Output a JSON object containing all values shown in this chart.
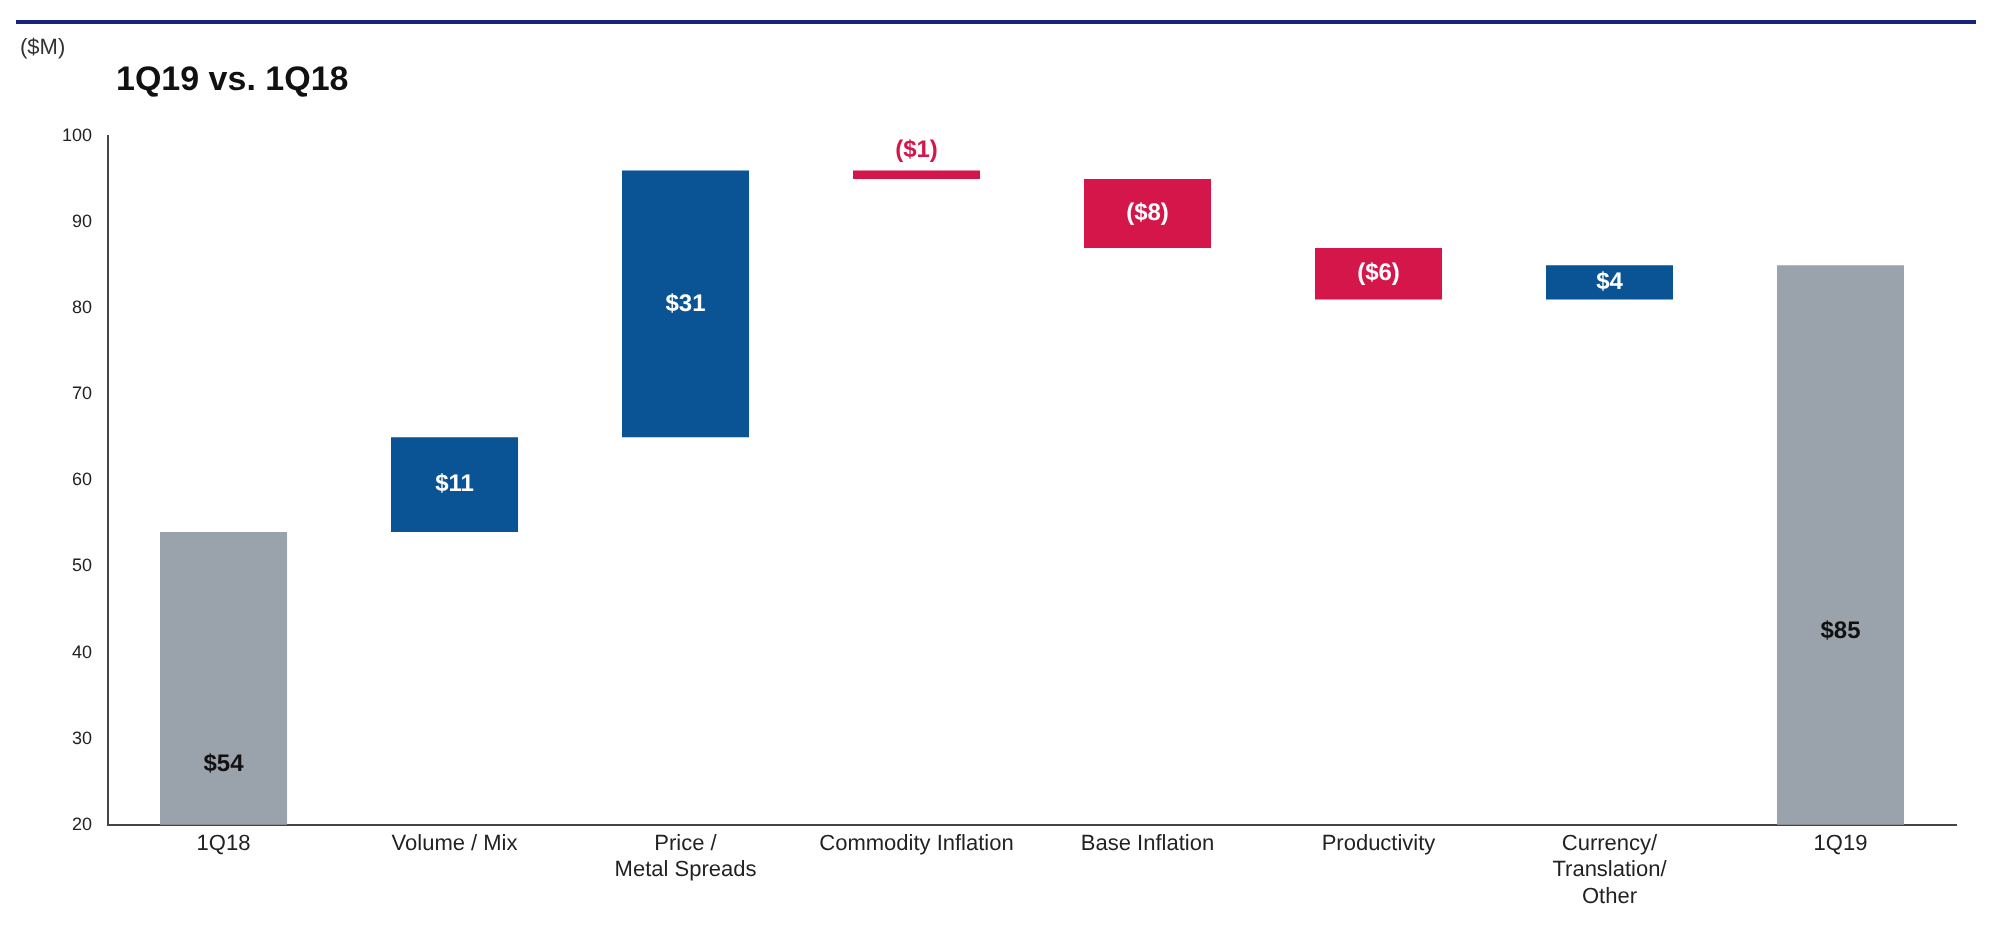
{
  "chart_data": {
    "type": "bar",
    "title": "1Q19 vs. 1Q18",
    "ylabel": "($M)",
    "categories": [
      "1Q18",
      "Volume / Mix",
      "Price /\nMetal Spreads",
      "Commodity Inflation",
      "Base Inflation",
      "Productivity",
      "Currency/\nTranslation/\nOther",
      "1Q19"
    ],
    "values": [
      54,
      11,
      31,
      -1,
      -8,
      -6,
      4,
      85
    ],
    "base": [
      null,
      54,
      65,
      96,
      95,
      87,
      81,
      null
    ],
    "colors": [
      "#9aa3ab",
      "#0a5394",
      "#0a5394",
      "#d4164a",
      "#d4164a",
      "#d4164a",
      "#0a5394",
      "#9aa3ab"
    ],
    "value_labels": [
      "$54",
      "$11",
      "$31",
      "($1)",
      "($8)",
      "($6)",
      "$4",
      "$85"
    ],
    "ylim": [
      20,
      100
    ],
    "yticks": [
      20,
      30,
      40,
      50,
      60,
      70,
      80,
      90,
      100
    ],
    "grid": false,
    "legend": false
  }
}
